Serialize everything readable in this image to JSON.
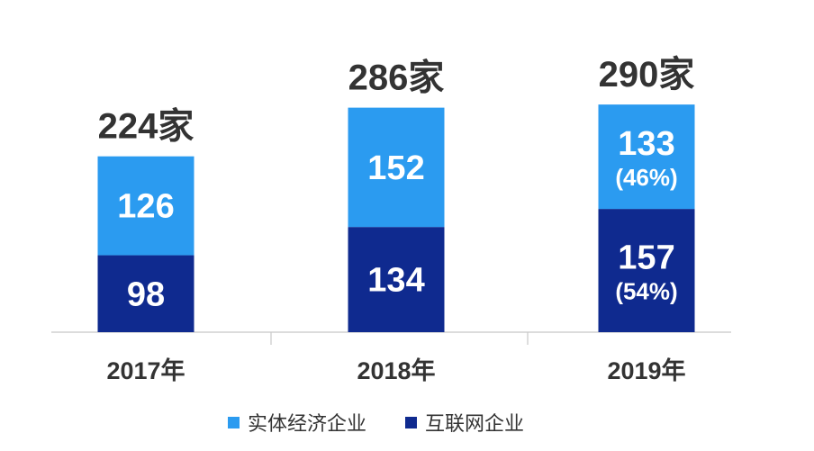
{
  "chart_data": {
    "type": "bar",
    "stacked": true,
    "categories": [
      "2017年",
      "2018年",
      "2019年"
    ],
    "totals": [
      "224家",
      "286家",
      "290家"
    ],
    "total_values": [
      224,
      286,
      290
    ],
    "series": [
      {
        "name": "互联网企业",
        "color": "#0f2a8f",
        "values": [
          98,
          134,
          157
        ],
        "percent_labels": [
          "",
          "",
          "(54%)"
        ]
      },
      {
        "name": "实体经济企业",
        "color": "#2b9bf0",
        "values": [
          126,
          152,
          133
        ],
        "percent_labels": [
          "",
          "",
          "(46%)"
        ]
      }
    ],
    "legend": {
      "placement": "bottom",
      "order": [
        "实体经济企业",
        "互联网企业"
      ]
    },
    "ylim": [
      0,
      290
    ],
    "grid": false,
    "title": "",
    "xlabel": "",
    "ylabel": ""
  }
}
